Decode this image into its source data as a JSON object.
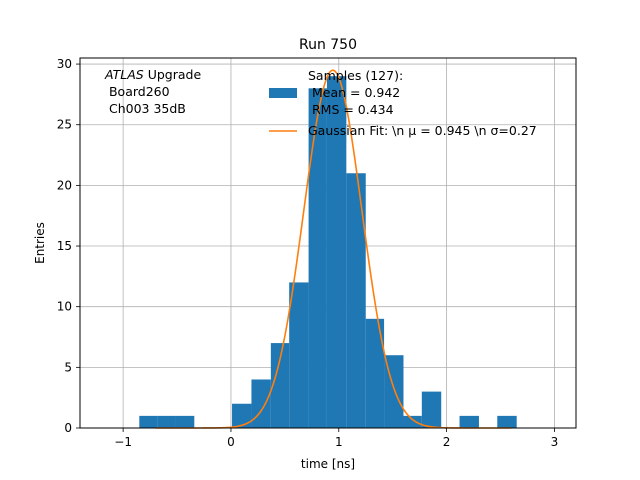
{
  "chart_data": {
    "type": "bar",
    "title": "Run 750",
    "xlabel": "time [ns]",
    "ylabel": "Entries",
    "xlim": [
      -1.4,
      3.2
    ],
    "ylim": [
      0,
      30.5
    ],
    "xticks": [
      -1,
      0,
      1,
      2,
      3
    ],
    "yticks": [
      0,
      5,
      10,
      15,
      20,
      25,
      30
    ],
    "grid": true,
    "annotation": {
      "lines": [
        {
          "italic": "ATLAS",
          "rest": " Upgrade"
        },
        {
          "italic": "",
          "rest": " Board260"
        },
        {
          "italic": "",
          "rest": " Ch003 35dB"
        }
      ]
    },
    "histogram": {
      "color": "#1f77b4",
      "bins": [
        {
          "x0": -0.85,
          "x1": -0.68,
          "count": 1
        },
        {
          "x0": -0.68,
          "x1": -0.51,
          "count": 1
        },
        {
          "x0": -0.51,
          "x1": -0.34,
          "count": 1
        },
        {
          "x0": 0.01,
          "x1": 0.19,
          "count": 2
        },
        {
          "x0": 0.19,
          "x1": 0.37,
          "count": 4
        },
        {
          "x0": 0.37,
          "x1": 0.54,
          "count": 7
        },
        {
          "x0": 0.54,
          "x1": 0.72,
          "count": 12
        },
        {
          "x0": 0.72,
          "x1": 0.89,
          "count": 28
        },
        {
          "x0": 0.89,
          "x1": 1.07,
          "count": 29
        },
        {
          "x0": 1.07,
          "x1": 1.25,
          "count": 21
        },
        {
          "x0": 1.25,
          "x1": 1.42,
          "count": 9
        },
        {
          "x0": 1.42,
          "x1": 1.6,
          "count": 6
        },
        {
          "x0": 1.6,
          "x1": 1.77,
          "count": 1
        },
        {
          "x0": 1.77,
          "x1": 1.95,
          "count": 3
        },
        {
          "x0": 2.12,
          "x1": 2.3,
          "count": 1
        },
        {
          "x0": 2.47,
          "x1": 2.65,
          "count": 1
        }
      ]
    },
    "fit": {
      "amplitude": 29.5,
      "mu": 0.945,
      "sigma": 0.27,
      "x_range": [
        -0.7,
        2.6
      ],
      "color": "#ff7f0e"
    },
    "legend": {
      "placement": "top-right",
      "entries": [
        {
          "lines": [
            "Samples (127):",
            " Mean = 0.942",
            " RMS = 0.434"
          ]
        },
        {
          "lines": [
            "Gaussian Fit: \\n μ = 0.945 \\n σ=0.27"
          ]
        }
      ]
    }
  }
}
